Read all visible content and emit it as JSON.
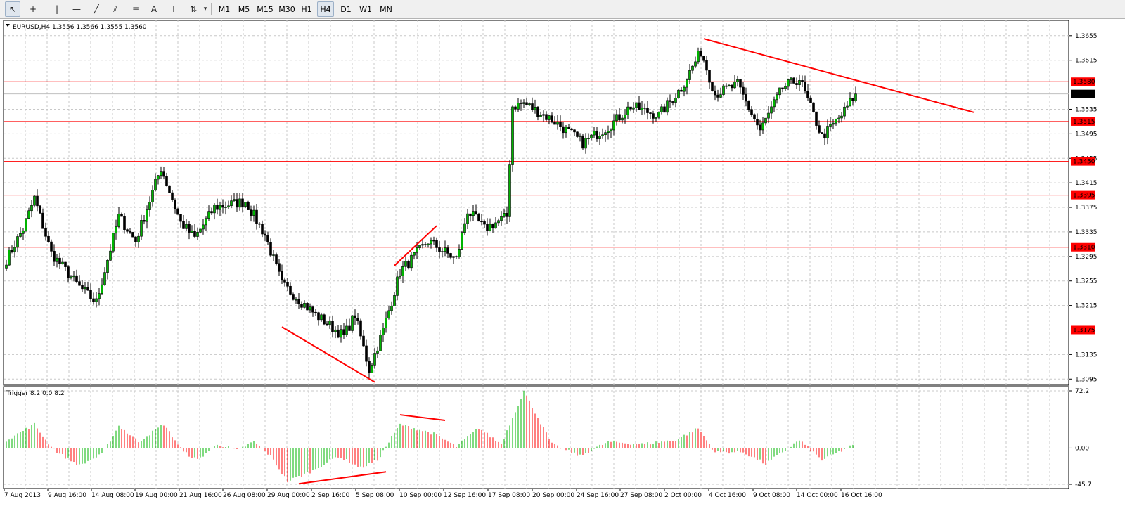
{
  "toolbar": {
    "tools": [
      {
        "name": "cursor-icon",
        "glyph": "↖"
      },
      {
        "name": "crosshair-icon",
        "glyph": "+"
      },
      {
        "name": "vertical-line-icon",
        "glyph": "|"
      },
      {
        "name": "horizontal-line-icon",
        "glyph": "—"
      },
      {
        "name": "trendline-icon",
        "glyph": "╱"
      },
      {
        "name": "equidistant-channel-icon",
        "glyph": "⫽"
      },
      {
        "name": "fibonacci-icon",
        "glyph": "≡"
      },
      {
        "name": "text-tool-icon",
        "glyph": "A"
      },
      {
        "name": "text-label-icon",
        "glyph": "T"
      },
      {
        "name": "arrows-icon",
        "glyph": "⇅"
      }
    ],
    "timeframes": [
      "M1",
      "M5",
      "M15",
      "M30",
      "H1",
      "H4",
      "D1",
      "W1",
      "MN"
    ],
    "active_timeframe": "H4"
  },
  "main_chart": {
    "title": "EURUSD,H4  1.3556 1.3566 1.3555 1.3560",
    "price_min": 1.3085,
    "price_max": 1.368,
    "price_ticks": [
      "1.3655",
      "1.3615",
      "1.3535",
      "1.3495",
      "1.3455",
      "1.3415",
      "1.3375",
      "1.3335",
      "1.3295",
      "1.3255",
      "1.3215",
      "1.3135",
      "1.3095"
    ],
    "current_price": "1.3560",
    "levels": [
      "1.3580",
      "1.3515",
      "1.3450",
      "1.3395",
      "1.3310",
      "1.3175"
    ],
    "colors": {
      "up": "#00b400",
      "down": "#ff0000",
      "level": "#ff0000",
      "current": "#000000"
    }
  },
  "indicator": {
    "title": "Trigger 8.2 0.0 8.2",
    "max_label": "72.2",
    "zero_label": "0.00",
    "min_label": "-45.7",
    "min": -45.7,
    "max": 72.2
  },
  "x_labels": [
    "7 Aug 2013",
    "9 Aug 16:00",
    "14 Aug 08:00",
    "19 Aug 00:00",
    "21 Aug 16:00",
    "26 Aug 08:00",
    "29 Aug 00:00",
    "2 Sep 16:00",
    "5 Sep 08:00",
    "10 Sep 00:00",
    "12 Sep 16:00",
    "17 Sep 08:00",
    "20 Sep 00:00",
    "24 Sep 16:00",
    "27 Sep 08:00",
    "2 Oct 00:00",
    "4 Oct 16:00",
    "9 Oct 08:00",
    "14 Oct 00:00",
    "16 Oct 16:00"
  ],
  "chart_data": {
    "type": "candlestick",
    "symbol": "EURUSD",
    "timeframe": "H4",
    "anchors": [
      {
        "i": 0,
        "p": 1.329
      },
      {
        "i": 6,
        "p": 1.334
      },
      {
        "i": 10,
        "p": 1.339
      },
      {
        "i": 16,
        "p": 1.33
      },
      {
        "i": 26,
        "p": 1.3245
      },
      {
        "i": 32,
        "p": 1.322
      },
      {
        "i": 40,
        "p": 1.336
      },
      {
        "i": 46,
        "p": 1.332
      },
      {
        "i": 55,
        "p": 1.344
      },
      {
        "i": 62,
        "p": 1.335
      },
      {
        "i": 67,
        "p": 1.3325
      },
      {
        "i": 74,
        "p": 1.3375
      },
      {
        "i": 85,
        "p": 1.3385
      },
      {
        "i": 92,
        "p": 1.333
      },
      {
        "i": 98,
        "p": 1.325
      },
      {
        "i": 110,
        "p": 1.32
      },
      {
        "i": 120,
        "p": 1.3165
      },
      {
        "i": 124,
        "p": 1.32
      },
      {
        "i": 129,
        "p": 1.311
      },
      {
        "i": 134,
        "p": 1.3175
      },
      {
        "i": 140,
        "p": 1.327
      },
      {
        "i": 150,
        "p": 1.332
      },
      {
        "i": 160,
        "p": 1.329
      },
      {
        "i": 164,
        "p": 1.337
      },
      {
        "i": 170,
        "p": 1.334
      },
      {
        "i": 178,
        "p": 1.336
      },
      {
        "i": 180,
        "p": 1.354
      },
      {
        "i": 184,
        "p": 1.3545
      },
      {
        "i": 195,
        "p": 1.3515
      },
      {
        "i": 205,
        "p": 1.348
      },
      {
        "i": 215,
        "p": 1.351
      },
      {
        "i": 222,
        "p": 1.354
      },
      {
        "i": 232,
        "p": 1.3525
      },
      {
        "i": 240,
        "p": 1.357
      },
      {
        "i": 247,
        "p": 1.363
      },
      {
        "i": 252,
        "p": 1.356
      },
      {
        "i": 260,
        "p": 1.3575
      },
      {
        "i": 268,
        "p": 1.35
      },
      {
        "i": 276,
        "p": 1.357
      },
      {
        "i": 282,
        "p": 1.3585
      },
      {
        "i": 290,
        "p": 1.349
      },
      {
        "i": 297,
        "p": 1.3525
      },
      {
        "i": 302,
        "p": 1.356
      }
    ],
    "indicator_anchors": [
      {
        "i": 0,
        "v": 10
      },
      {
        "i": 10,
        "v": 30
      },
      {
        "i": 14,
        "v": 10
      },
      {
        "i": 18,
        "v": -5
      },
      {
        "i": 26,
        "v": -22
      },
      {
        "i": 34,
        "v": -8
      },
      {
        "i": 40,
        "v": 28
      },
      {
        "i": 47,
        "v": 8
      },
      {
        "i": 56,
        "v": 30
      },
      {
        "i": 63,
        "v": -5
      },
      {
        "i": 68,
        "v": -15
      },
      {
        "i": 75,
        "v": 5
      },
      {
        "i": 82,
        "v": -3
      },
      {
        "i": 88,
        "v": 8
      },
      {
        "i": 94,
        "v": -10
      },
      {
        "i": 100,
        "v": -42
      },
      {
        "i": 108,
        "v": -30
      },
      {
        "i": 118,
        "v": -10
      },
      {
        "i": 126,
        "v": -25
      },
      {
        "i": 132,
        "v": -15
      },
      {
        "i": 140,
        "v": 30
      },
      {
        "i": 152,
        "v": 18
      },
      {
        "i": 160,
        "v": 2
      },
      {
        "i": 168,
        "v": 25
      },
      {
        "i": 176,
        "v": 5
      },
      {
        "i": 184,
        "v": 72
      },
      {
        "i": 194,
        "v": 5
      },
      {
        "i": 204,
        "v": -10
      },
      {
        "i": 214,
        "v": 8
      },
      {
        "i": 226,
        "v": 5
      },
      {
        "i": 238,
        "v": 10
      },
      {
        "i": 246,
        "v": 25
      },
      {
        "i": 252,
        "v": -5
      },
      {
        "i": 262,
        "v": -5
      },
      {
        "i": 270,
        "v": -20
      },
      {
        "i": 282,
        "v": 10
      },
      {
        "i": 290,
        "v": -15
      },
      {
        "i": 302,
        "v": 5
      }
    ],
    "trendlines": [
      {
        "from": {
          "i": 248,
          "p": 1.365
        },
        "to": {
          "i": 344,
          "p": 1.353
        }
      },
      {
        "from": {
          "i": 98,
          "p": 1.318
        },
        "to": {
          "i": 131,
          "p": 1.309
        }
      },
      {
        "from": {
          "i": 138,
          "p": 1.328
        },
        "to": {
          "i": 153,
          "p": 1.3345
        }
      }
    ],
    "indicator_trendlines": [
      {
        "from": {
          "i": 140,
          "v": 42
        },
        "to": {
          "i": 156,
          "v": 35
        }
      },
      {
        "from": {
          "i": 104,
          "v": -45
        },
        "to": {
          "i": 135,
          "v": -30
        }
      }
    ]
  }
}
